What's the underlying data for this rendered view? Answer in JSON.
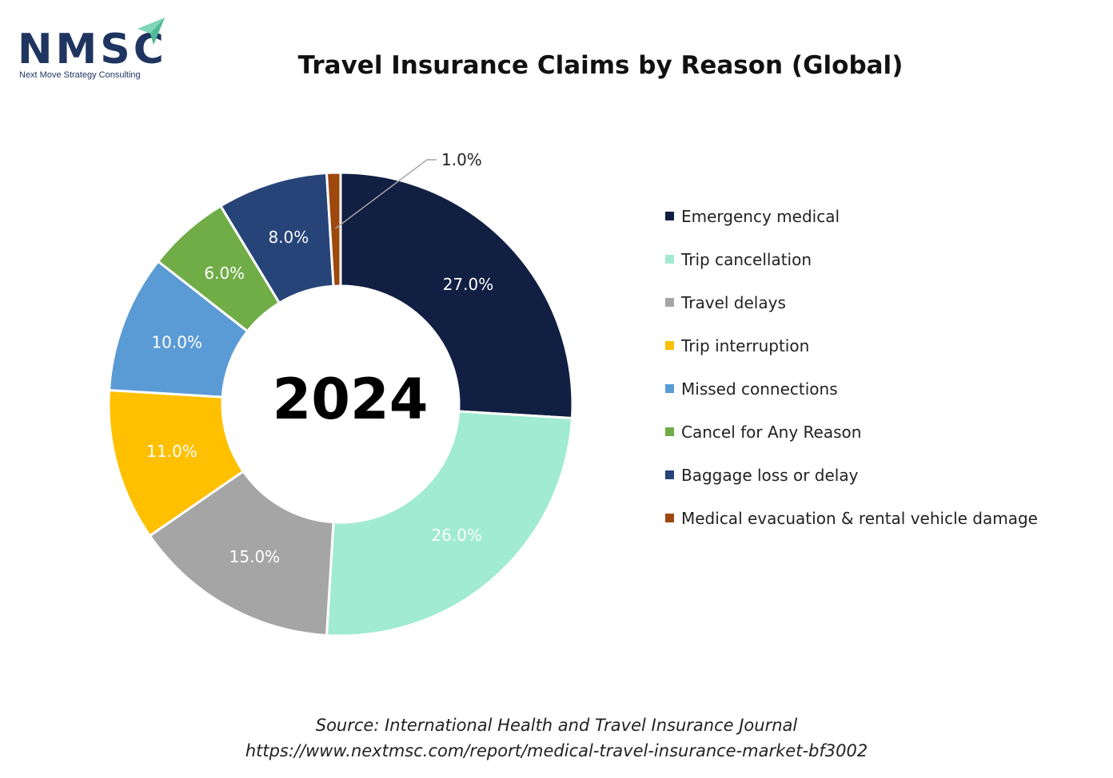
{
  "branding": {
    "logo_text": "NMSC",
    "logo_tagline": "Next Move Strategy Consulting",
    "logo_color": "#1f3560",
    "logo_accent": "#7fd6b8"
  },
  "chart_data": {
    "type": "pie",
    "variant": "donut",
    "title": "Travel Insurance Claims by Reason (Global)",
    "center_label": "2024",
    "categories": [
      "Emergency medical",
      "Trip cancellation",
      "Travel delays",
      "Trip interruption",
      "Missed connections",
      "Cancel for Any Reason",
      "Baggage loss or delay",
      "Medical evacuation & rental vehicle damage"
    ],
    "values": [
      27,
      26,
      15,
      11,
      10,
      6,
      8,
      1
    ],
    "data_labels": [
      "27.0%",
      "26.0%",
      "15.0%",
      "11.0%",
      "10.0%",
      "6.0%",
      "8.0%",
      "1.0%"
    ],
    "colors": [
      "#111f42",
      "#a0ebd1",
      "#a5a5a5",
      "#ffc000",
      "#5b9bd5",
      "#70ad47",
      "#264478",
      "#9e480e"
    ],
    "label_colors": [
      "#ffffff",
      "#ffffff",
      "#ffffff",
      "#ffffff",
      "#ffffff",
      "#ffffff",
      "#ffffff",
      "#222222"
    ],
    "legend_position": "right"
  },
  "source": {
    "line1": "Source: International Health and Travel Insurance Journal",
    "line2": "https://www.nextmsc.com/report/medical-travel-insurance-market-bf3002"
  }
}
